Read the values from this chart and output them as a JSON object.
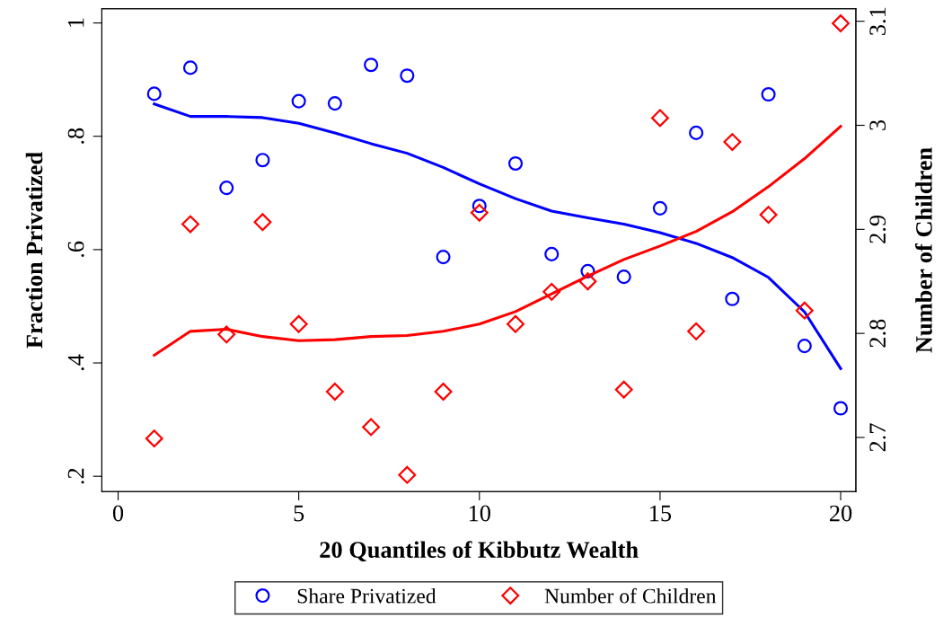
{
  "chart_data": {
    "type": "scatter",
    "xlabel": "20 Quantiles of Kibbutz Wealth",
    "ylabel": "Fraction Privatized",
    "y2label": "Number of Children",
    "x": [
      1,
      2,
      3,
      4,
      5,
      6,
      7,
      8,
      9,
      10,
      11,
      12,
      13,
      14,
      15,
      16,
      17,
      18,
      19,
      20
    ],
    "series": [
      {
        "name": "Share Privatized",
        "marker": "circle",
        "color": "#0000ff",
        "values": [
          0.875,
          0.921,
          0.709,
          0.758,
          0.862,
          0.858,
          0.926,
          0.907,
          0.587,
          0.677,
          0.752,
          0.592,
          0.562,
          0.552,
          0.673,
          0.806,
          0.513,
          0.874,
          0.43,
          0.32
        ]
      },
      {
        "type": "line",
        "color": "#0000ff",
        "values": [
          0.857,
          0.835,
          0.835,
          0.833,
          0.823,
          0.806,
          0.787,
          0.77,
          0.745,
          0.716,
          0.69,
          0.668,
          0.656,
          0.645,
          0.63,
          0.611,
          0.586,
          0.551,
          0.49,
          0.39
        ]
      },
      {
        "name": "Number of Children",
        "marker": "diamond",
        "axis": "y2",
        "color": "#ff0000",
        "values": [
          2.699,
          2.905,
          2.799,
          2.907,
          2.809,
          2.744,
          2.71,
          2.664,
          2.744,
          2.916,
          2.809,
          2.84,
          2.85,
          2.746,
          3.007,
          2.802,
          2.984,
          2.914,
          2.822,
          3.098
        ]
      },
      {
        "type": "line",
        "axis": "y2",
        "color": "#ff0000",
        "values": [
          2.779,
          2.802,
          2.804,
          2.797,
          2.793,
          2.794,
          2.797,
          2.798,
          2.802,
          2.809,
          2.821,
          2.838,
          2.855,
          2.871,
          2.884,
          2.898,
          2.917,
          2.941,
          2.968,
          2.999
        ]
      }
    ],
    "xlim": [
      -0.45,
      20.42
    ],
    "xticks": [
      0,
      5,
      10,
      15,
      20
    ],
    "ylim": [
      0.173,
      1.025
    ],
    "yticks": [
      {
        "value": 0.2,
        "label": ".2"
      },
      {
        "value": 0.4,
        "label": ".4"
      },
      {
        "value": 0.6,
        "label": ".6"
      },
      {
        "value": 0.8,
        "label": ".8"
      },
      {
        "value": 1,
        "label": "1"
      }
    ],
    "y2lim": [
      2.648,
      3.112
    ],
    "y2ticks": [
      2.7,
      2.8,
      2.9,
      3,
      3.1
    ],
    "grid": false,
    "legend": "bottom"
  }
}
